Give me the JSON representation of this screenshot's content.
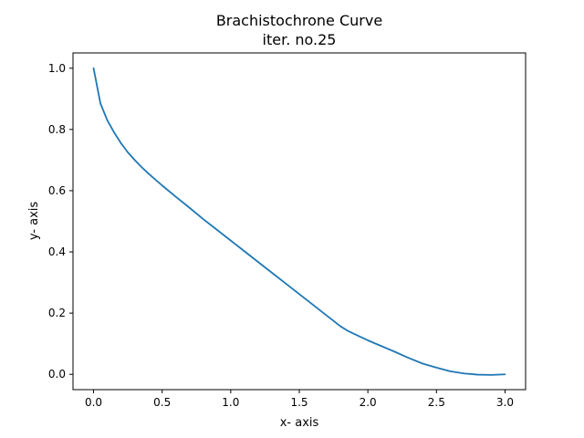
{
  "chart_data": {
    "type": "line",
    "title": "Brachistochrone Curve",
    "subtitle": "iter. no.25",
    "xlabel": "x- axis",
    "ylabel": "y- axis",
    "xlim": [
      -0.15,
      3.15
    ],
    "ylim": [
      -0.05,
      1.05
    ],
    "xticks": [
      0.0,
      0.5,
      1.0,
      1.5,
      2.0,
      2.5,
      3.0
    ],
    "xtick_labels": [
      "0.0",
      "0.5",
      "1.0",
      "1.5",
      "2.0",
      "2.5",
      "3.0"
    ],
    "yticks": [
      0.0,
      0.2,
      0.4,
      0.6,
      0.8,
      1.0
    ],
    "ytick_labels": [
      "0.0",
      "0.2",
      "0.4",
      "0.6",
      "0.8",
      "1.0"
    ],
    "grid": false,
    "series": [
      {
        "color": "#1f77b4",
        "x": [
          0.0,
          0.05,
          0.1,
          0.15,
          0.2,
          0.25,
          0.3,
          0.35,
          0.4,
          0.5,
          0.6,
          0.7,
          0.8,
          0.9,
          1.0,
          1.1,
          1.2,
          1.3,
          1.4,
          1.5,
          1.6,
          1.7,
          1.8,
          1.85,
          1.9,
          2.0,
          2.1,
          2.2,
          2.3,
          2.4,
          2.5,
          2.6,
          2.7,
          2.8,
          2.9,
          3.0
        ],
        "y": [
          1.0,
          0.885,
          0.83,
          0.79,
          0.755,
          0.725,
          0.7,
          0.677,
          0.656,
          0.617,
          0.58,
          0.544,
          0.507,
          0.472,
          0.437,
          0.402,
          0.367,
          0.332,
          0.297,
          0.262,
          0.227,
          0.192,
          0.157,
          0.143,
          0.132,
          0.111,
          0.092,
          0.073,
          0.053,
          0.035,
          0.022,
          0.01,
          0.003,
          -0.001,
          -0.002,
          0.0
        ]
      }
    ]
  }
}
